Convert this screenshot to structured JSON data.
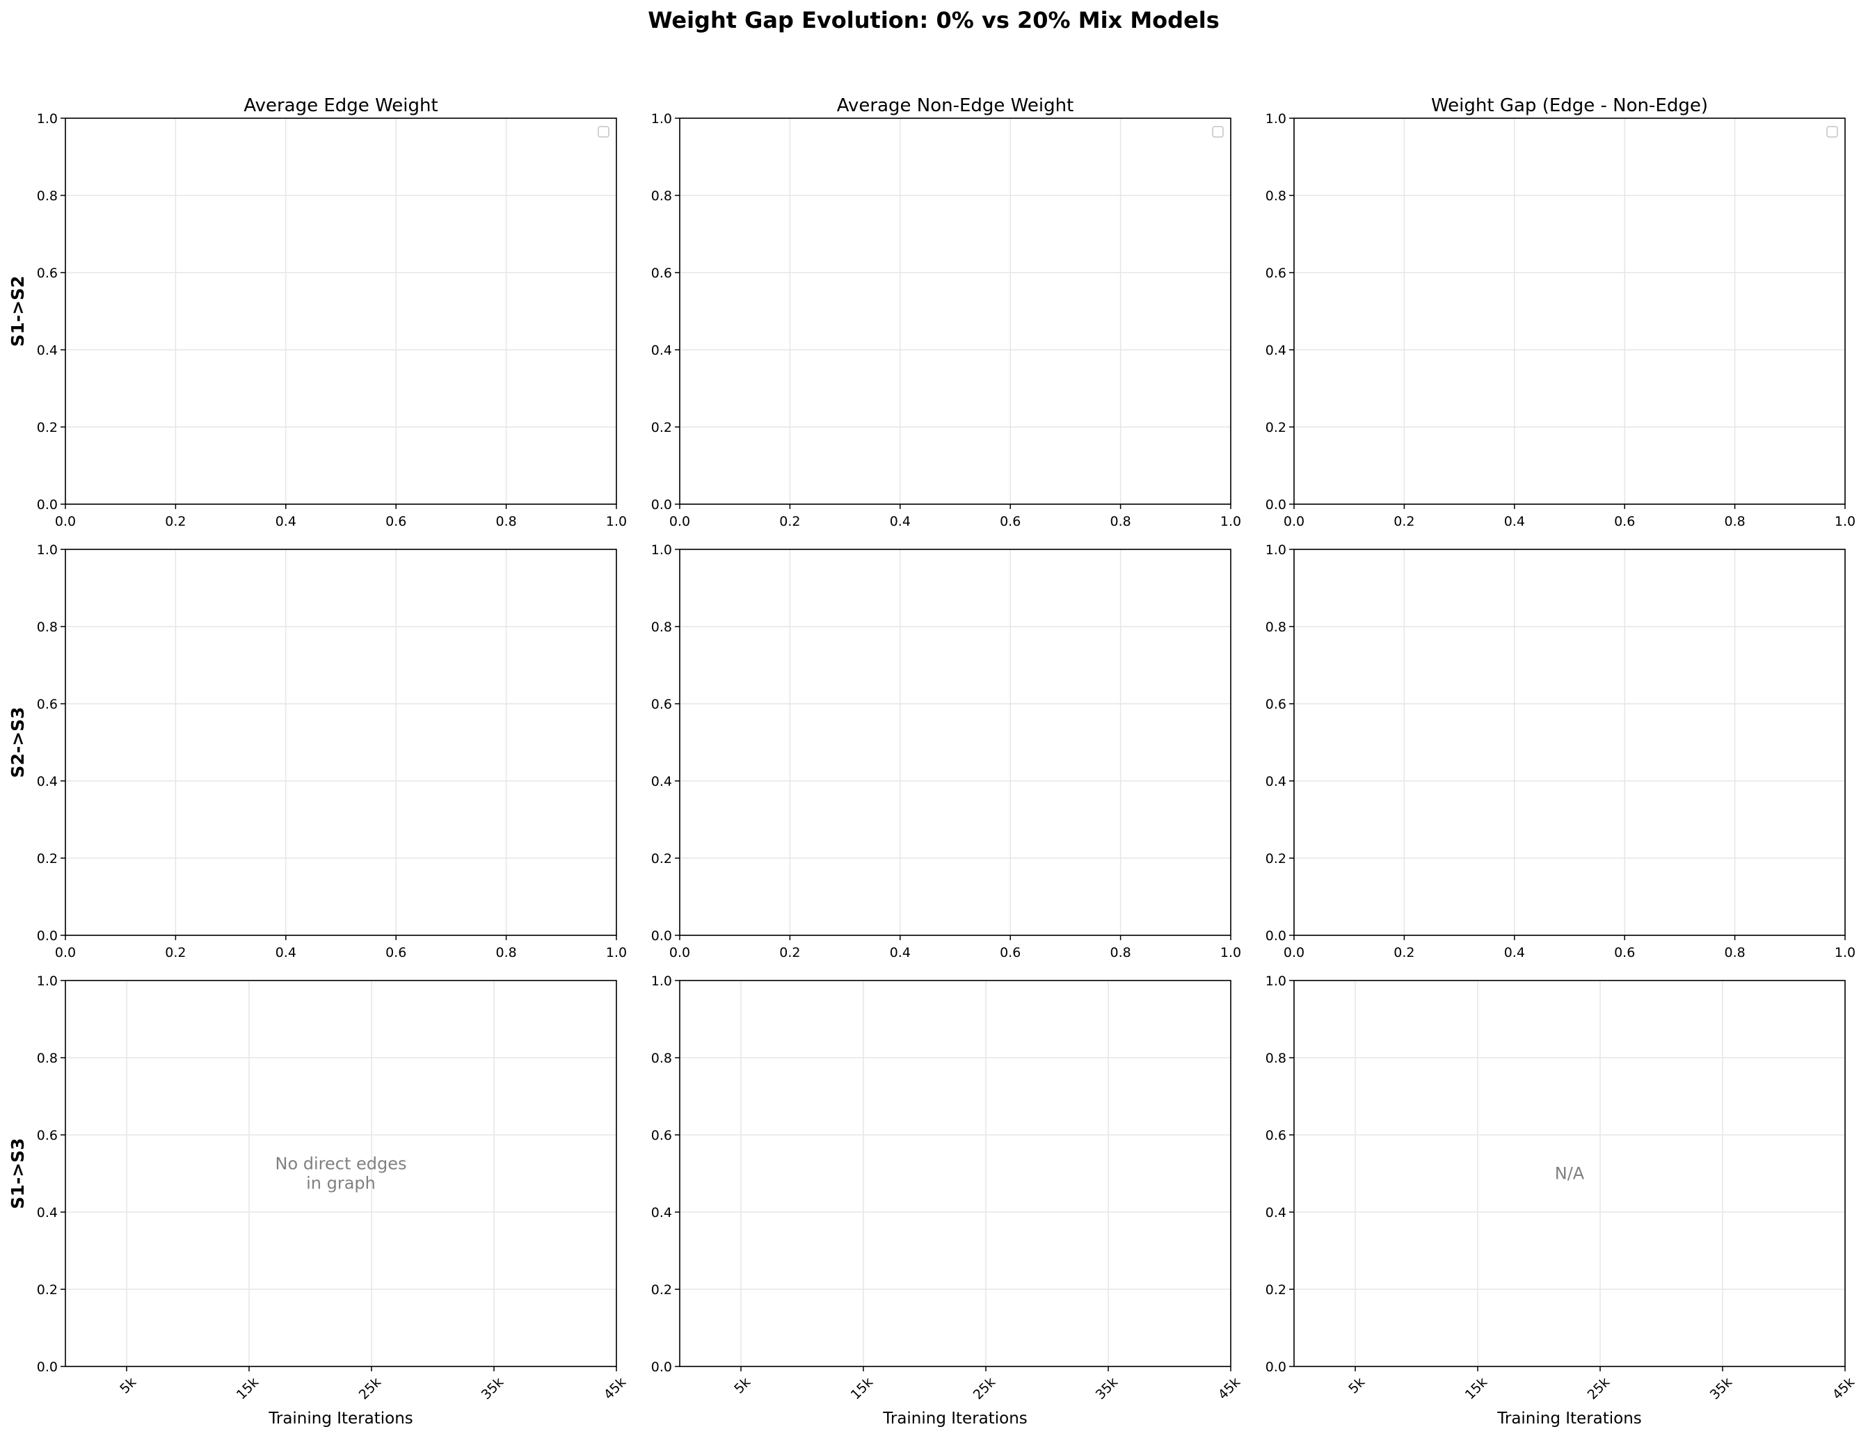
{
  "figure": {
    "title": "Weight Gap Evolution: 0% vs 20% Mix Models"
  },
  "row_labels": [
    "S1->S2",
    "S2->S3",
    "S1->S3"
  ],
  "chart_data": [
    {
      "id": "r0c0",
      "type": "line",
      "title": "Average Edge Weight",
      "xlabel": "",
      "ylabel": "S1->S2",
      "xlim": [
        0,
        1
      ],
      "ylim": [
        0,
        1
      ],
      "xticks": [
        0,
        0.2,
        0.4,
        0.6,
        0.8,
        1
      ],
      "xticklabels": [
        "0.0",
        "0.2",
        "0.4",
        "0.6",
        "0.8",
        "1.0"
      ],
      "yticks": [
        0,
        0.2,
        0.4,
        0.6,
        0.8,
        1
      ],
      "yticklabels": [
        "0.0",
        "0.2",
        "0.4",
        "0.6",
        "0.8",
        "1.0"
      ],
      "grid": true,
      "legend": "upper-right",
      "series": [],
      "annotation": ""
    },
    {
      "id": "r0c1",
      "type": "line",
      "title": "Average Non-Edge Weight",
      "xlabel": "",
      "ylabel": "",
      "xlim": [
        0,
        1
      ],
      "ylim": [
        0,
        1
      ],
      "xticks": [
        0,
        0.2,
        0.4,
        0.6,
        0.8,
        1
      ],
      "xticklabels": [
        "0.0",
        "0.2",
        "0.4",
        "0.6",
        "0.8",
        "1.0"
      ],
      "yticks": [
        0,
        0.2,
        0.4,
        0.6,
        0.8,
        1
      ],
      "yticklabels": [
        "0.0",
        "0.2",
        "0.4",
        "0.6",
        "0.8",
        "1.0"
      ],
      "grid": true,
      "legend": "upper-right",
      "series": [],
      "annotation": ""
    },
    {
      "id": "r0c2",
      "type": "line",
      "title": "Weight Gap (Edge - Non-Edge)",
      "xlabel": "",
      "ylabel": "",
      "xlim": [
        0,
        1
      ],
      "ylim": [
        0,
        1
      ],
      "xticks": [
        0,
        0.2,
        0.4,
        0.6,
        0.8,
        1
      ],
      "xticklabels": [
        "0.0",
        "0.2",
        "0.4",
        "0.6",
        "0.8",
        "1.0"
      ],
      "yticks": [
        0,
        0.2,
        0.4,
        0.6,
        0.8,
        1
      ],
      "yticklabels": [
        "0.0",
        "0.2",
        "0.4",
        "0.6",
        "0.8",
        "1.0"
      ],
      "grid": true,
      "legend": "upper-right",
      "series": [],
      "annotation": ""
    },
    {
      "id": "r1c0",
      "type": "line",
      "title": "",
      "xlabel": "",
      "ylabel": "S2->S3",
      "xlim": [
        0,
        1
      ],
      "ylim": [
        0,
        1
      ],
      "xticks": [
        0,
        0.2,
        0.4,
        0.6,
        0.8,
        1
      ],
      "xticklabels": [
        "0.0",
        "0.2",
        "0.4",
        "0.6",
        "0.8",
        "1.0"
      ],
      "yticks": [
        0,
        0.2,
        0.4,
        0.6,
        0.8,
        1
      ],
      "yticklabels": [
        "0.0",
        "0.2",
        "0.4",
        "0.6",
        "0.8",
        "1.0"
      ],
      "grid": true,
      "legend": "none",
      "series": [],
      "annotation": ""
    },
    {
      "id": "r1c1",
      "type": "line",
      "title": "",
      "xlabel": "",
      "ylabel": "",
      "xlim": [
        0,
        1
      ],
      "ylim": [
        0,
        1
      ],
      "xticks": [
        0,
        0.2,
        0.4,
        0.6,
        0.8,
        1
      ],
      "xticklabels": [
        "0.0",
        "0.2",
        "0.4",
        "0.6",
        "0.8",
        "1.0"
      ],
      "yticks": [
        0,
        0.2,
        0.4,
        0.6,
        0.8,
        1
      ],
      "yticklabels": [
        "0.0",
        "0.2",
        "0.4",
        "0.6",
        "0.8",
        "1.0"
      ],
      "grid": true,
      "legend": "none",
      "series": [],
      "annotation": ""
    },
    {
      "id": "r1c2",
      "type": "line",
      "title": "",
      "xlabel": "",
      "ylabel": "",
      "xlim": [
        0,
        1
      ],
      "ylim": [
        0,
        1
      ],
      "xticks": [
        0,
        0.2,
        0.4,
        0.6,
        0.8,
        1
      ],
      "xticklabels": [
        "0.0",
        "0.2",
        "0.4",
        "0.6",
        "0.8",
        "1.0"
      ],
      "yticks": [
        0,
        0.2,
        0.4,
        0.6,
        0.8,
        1
      ],
      "yticklabels": [
        "0.0",
        "0.2",
        "0.4",
        "0.6",
        "0.8",
        "1.0"
      ],
      "grid": true,
      "legend": "none",
      "series": [],
      "annotation": ""
    },
    {
      "id": "r2c0",
      "type": "line",
      "title": "",
      "xlabel": "Training Iterations",
      "ylabel": "S1->S3",
      "xlim": [
        0,
        45000
      ],
      "ylim": [
        0,
        1
      ],
      "xticks": [
        5000,
        15000,
        25000,
        35000,
        45000
      ],
      "xticklabels": [
        "5k",
        "15k",
        "25k",
        "35k",
        "45k"
      ],
      "xtick_rotation": 45,
      "yticks": [
        0,
        0.2,
        0.4,
        0.6,
        0.8,
        1
      ],
      "yticklabels": [
        "0.0",
        "0.2",
        "0.4",
        "0.6",
        "0.8",
        "1.0"
      ],
      "grid": true,
      "legend": "none",
      "series": [],
      "annotation": "No direct edges\nin graph"
    },
    {
      "id": "r2c1",
      "type": "line",
      "title": "",
      "xlabel": "Training Iterations",
      "ylabel": "",
      "xlim": [
        0,
        45000
      ],
      "ylim": [
        0,
        1
      ],
      "xticks": [
        5000,
        15000,
        25000,
        35000,
        45000
      ],
      "xticklabels": [
        "5k",
        "15k",
        "25k",
        "35k",
        "45k"
      ],
      "xtick_rotation": 45,
      "yticks": [
        0,
        0.2,
        0.4,
        0.6,
        0.8,
        1
      ],
      "yticklabels": [
        "0.0",
        "0.2",
        "0.4",
        "0.6",
        "0.8",
        "1.0"
      ],
      "grid": true,
      "legend": "none",
      "series": [],
      "annotation": ""
    },
    {
      "id": "r2c2",
      "type": "line",
      "title": "",
      "xlabel": "Training Iterations",
      "ylabel": "",
      "xlim": [
        0,
        45000
      ],
      "ylim": [
        0,
        1
      ],
      "xticks": [
        5000,
        15000,
        25000,
        35000,
        45000
      ],
      "xticklabels": [
        "5k",
        "15k",
        "25k",
        "35k",
        "45k"
      ],
      "xtick_rotation": 45,
      "yticks": [
        0,
        0.2,
        0.4,
        0.6,
        0.8,
        1
      ],
      "yticklabels": [
        "0.0",
        "0.2",
        "0.4",
        "0.6",
        "0.8",
        "1.0"
      ],
      "grid": true,
      "legend": "none",
      "series": [],
      "annotation": "N/A"
    }
  ]
}
